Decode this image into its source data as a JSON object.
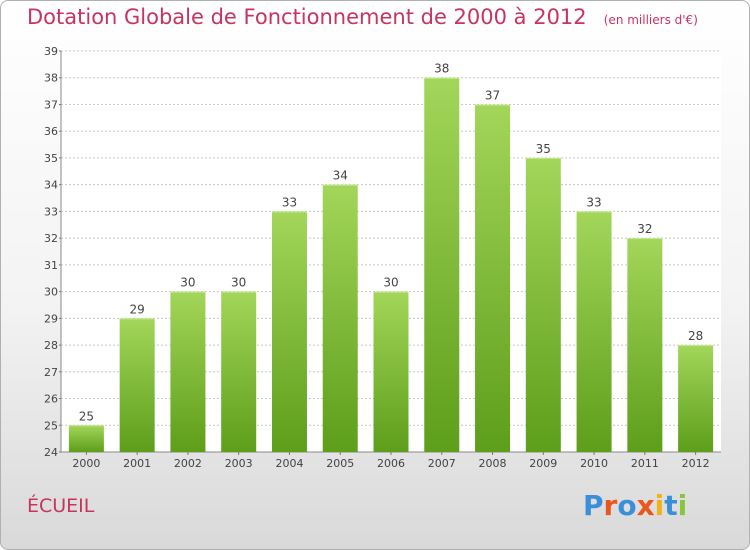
{
  "header": {
    "title": "Dotation Globale de Fonctionnement de 2000 à 2012",
    "subtitle": "(en milliers d'€)"
  },
  "footer": {
    "commune": "ÉCUEIL",
    "logo_text": "Proxiti"
  },
  "colors": {
    "title": "#c8335f",
    "bar_top": "#a3d65a",
    "bar_bottom": "#5d9e1a",
    "grid": "#c8c8c8",
    "logo": [
      "#3a8fd8",
      "#e8581a",
      "#3a8fd8",
      "#e8581a",
      "#f2b11a",
      "#3a8fd8",
      "#8bc43f"
    ]
  },
  "chart_data": {
    "type": "bar",
    "title": "Dotation Globale de Fonctionnement de 2000 à 2012",
    "subtitle": "(en milliers d'€)",
    "categories": [
      "2000",
      "2001",
      "2002",
      "2003",
      "2004",
      "2005",
      "2006",
      "2007",
      "2008",
      "2009",
      "2010",
      "2011",
      "2012"
    ],
    "values": [
      25,
      29,
      30,
      30,
      33,
      34,
      30,
      38,
      37,
      35,
      33,
      32,
      28
    ],
    "data_labels": [
      "25",
      "29",
      "30",
      "30",
      "33",
      "34",
      "30",
      "38",
      "37",
      "35",
      "33",
      "32",
      "28"
    ],
    "ylim": [
      24,
      39
    ],
    "yticks": [
      24,
      25,
      26,
      27,
      28,
      29,
      30,
      31,
      32,
      33,
      34,
      35,
      36,
      37,
      38,
      39
    ],
    "xlabel": "",
    "ylabel": "",
    "grid": true,
    "legend": "none"
  }
}
